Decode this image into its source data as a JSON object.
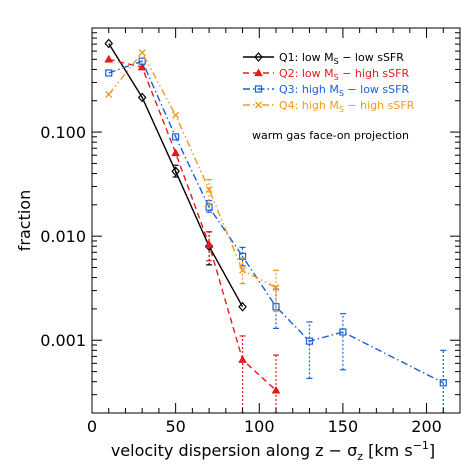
{
  "chart_data": {
    "type": "line",
    "title": "",
    "xlabel": "velocity dispersion along z − σ",
    "xlabel_sub": "z",
    "xlabel_units": " [km s",
    "xlabel_units_sup": "−1",
    "xlabel_units_end": "]",
    "ylabel": "fraction",
    "xlim": [
      0,
      220
    ],
    "ylim": [
      0.0002,
      1.0
    ],
    "yscale": "log",
    "grid": false,
    "legend_position": "top-right",
    "x_ticks": [
      0,
      50,
      100,
      150,
      200
    ],
    "x_tick_labels": [
      "0",
      "50",
      "100",
      "150",
      "200"
    ],
    "y_ticks": [
      0.001,
      0.01,
      0.1
    ],
    "y_tick_labels": [
      "0.001",
      "0.010",
      "0.100"
    ],
    "annotation": "warm gas face-on projection",
    "series": [
      {
        "name": "Q1: low M",
        "name_sub": "S",
        "name_end": " − low sSFR",
        "color": "#000000",
        "marker": "diamond",
        "dash": "solid",
        "x": [
          10,
          30,
          50,
          70,
          90
        ],
        "y": [
          0.71,
          0.215,
          0.042,
          0.008,
          0.0021
        ],
        "err_lo": [
          null,
          null,
          0.037,
          0.0053,
          null
        ],
        "err_hi": [
          null,
          null,
          0.048,
          0.011,
          null
        ]
      },
      {
        "name": "Q2: low M",
        "name_sub": "S",
        "name_end": " − high sSFR",
        "color": "#e8191c",
        "marker": "triangle",
        "dash": "dashed",
        "x": [
          10,
          30,
          50,
          70,
          90,
          110
        ],
        "y": [
          0.5,
          0.42,
          0.063,
          0.0083,
          0.00065,
          0.00033
        ],
        "err_lo": [
          null,
          null,
          null,
          0.0058,
          0.0002,
          0.0002
        ],
        "err_hi": [
          null,
          null,
          null,
          0.011,
          0.0011,
          0.00072
        ]
      },
      {
        "name": "Q3: high M",
        "name_sub": "S",
        "name_end": " − low sSFR",
        "color": "#1a5fdb",
        "marker": "square",
        "dash": "dashdot",
        "x": [
          10,
          30,
          50,
          70,
          90,
          110,
          130,
          150,
          210
        ],
        "y": [
          0.37,
          0.48,
          0.09,
          0.019,
          0.0064,
          0.0021,
          0.00098,
          0.0012,
          0.00039
        ],
        "err_lo": [
          null,
          null,
          null,
          0.017,
          0.0052,
          0.0013,
          0.00043,
          0.00052,
          0.0002
        ],
        "err_hi": [
          null,
          null,
          null,
          0.022,
          0.0078,
          0.0031,
          0.0015,
          0.0018,
          0.0008
        ]
      },
      {
        "name": "Q4: high M",
        "name_sub": "S",
        "name_end": " − high sSFR",
        "color": "#f29a19",
        "marker": "x",
        "dash": "dashdotdot",
        "x": [
          10,
          30,
          50,
          70,
          90,
          110
        ],
        "y": [
          0.23,
          0.58,
          0.145,
          0.028,
          0.0047,
          0.0032
        ],
        "err_lo": [
          null,
          null,
          null,
          0.02,
          0.0035,
          0.0019
        ],
        "err_hi": [
          null,
          null,
          null,
          0.035,
          0.0062,
          0.0047
        ]
      }
    ]
  }
}
